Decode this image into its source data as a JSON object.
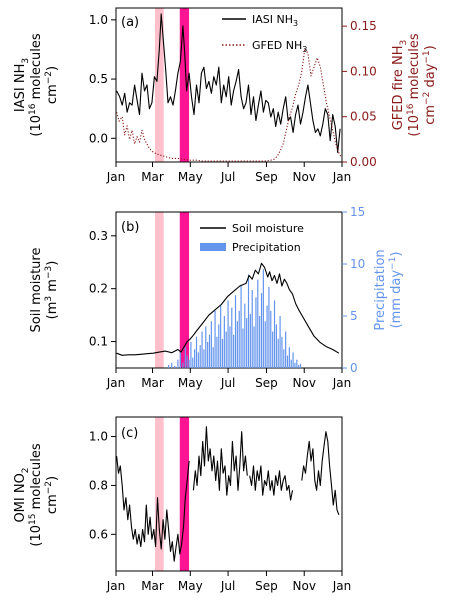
{
  "colors": {
    "iasi": "#000000",
    "gfed": "#8b1a1a",
    "soil": "#000000",
    "precip": "#6495ed",
    "omi": "#000000",
    "band_light": "#ffc0cb",
    "band_dark": "#ff1493"
  },
  "months": [
    "Jan",
    "Mar",
    "May",
    "Jul",
    "Sep",
    "Nov",
    "Jan"
  ],
  "chart_data": [
    {
      "type": "line",
      "panel_label": "(a)",
      "left_axis": {
        "label_lines": [
          "IASI NH",
          "(10",
          " molecules",
          "cm"
        ],
        "ylim": [
          -0.2,
          1.1
        ],
        "ticks": [
          "0.0",
          "0.5",
          "1.0"
        ],
        "tick_values": [
          0.0,
          0.5,
          1.0
        ]
      },
      "right_axis": {
        "label_lines": [
          "GFED fire NH",
          "(10",
          " molecules",
          "cm",
          " day"
        ],
        "ylim": [
          0.0,
          0.17
        ],
        "ticks": [
          "0.00",
          "0.05",
          "0.10",
          "0.15"
        ],
        "tick_values": [
          0.0,
          0.05,
          0.1,
          0.15
        ]
      },
      "shaded_bands": [
        {
          "start": 63,
          "end": 77,
          "shade": "light"
        },
        {
          "start": 103,
          "end": 118,
          "shade": "dark"
        }
      ],
      "series": [
        {
          "name": "IASI NH3",
          "axis": "left",
          "style": "solid",
          "x": [
            1,
            6,
            10,
            14,
            18,
            22,
            26,
            30,
            34,
            38,
            42,
            46,
            50,
            54,
            58,
            62,
            66,
            70,
            73,
            76,
            80,
            84,
            88,
            92,
            96,
            100,
            104,
            108,
            111,
            114,
            118,
            122,
            126,
            130,
            134,
            138,
            142,
            146,
            150,
            154,
            158,
            162,
            166,
            170,
            174,
            178,
            182,
            186,
            190,
            194,
            198,
            202,
            206,
            210,
            214,
            218,
            222,
            226,
            230,
            234,
            238,
            242,
            246,
            250,
            254,
            258,
            262,
            266,
            270,
            274,
            278,
            282,
            286,
            290,
            294,
            298,
            302,
            306,
            310,
            314,
            318,
            322,
            326,
            330,
            334,
            338,
            342,
            346,
            350,
            354,
            358,
            362
          ],
          "y": [
            0.4,
            0.35,
            0.28,
            0.38,
            0.22,
            0.3,
            0.28,
            0.45,
            0.32,
            0.2,
            0.55,
            0.4,
            0.45,
            0.25,
            0.3,
            0.52,
            0.48,
            0.75,
            1.05,
            0.85,
            0.6,
            0.3,
            0.35,
            0.28,
            0.4,
            0.55,
            0.65,
            0.95,
            0.72,
            0.4,
            0.55,
            0.35,
            0.2,
            0.45,
            0.3,
            0.55,
            0.6,
            0.42,
            0.48,
            0.38,
            0.52,
            0.45,
            0.6,
            0.3,
            0.45,
            0.35,
            0.52,
            0.28,
            0.4,
            0.48,
            0.58,
            0.35,
            0.25,
            0.3,
            0.45,
            0.2,
            0.35,
            0.15,
            0.28,
            0.4,
            0.22,
            0.32,
            0.3,
            0.18,
            0.25,
            0.1,
            0.22,
            0.12,
            0.25,
            0.35,
            0.15,
            0.18,
            0.05,
            0.2,
            0.28,
            0.12,
            0.22,
            0.35,
            0.45,
            0.3,
            0.15,
            0.05,
            0.08,
            0.02,
            0.12,
            0.25,
            0.2,
            -0.02,
            0.2,
            0.1,
            -0.12,
            0.08
          ]
        },
        {
          "name": "GFED NH3",
          "axis": "right",
          "style": "dotted",
          "x": [
            1,
            5,
            10,
            14,
            18,
            22,
            26,
            30,
            34,
            38,
            42,
            46,
            50,
            54,
            58,
            62,
            70,
            80,
            90,
            100,
            110,
            120,
            130,
            140,
            150,
            160,
            170,
            180,
            190,
            200,
            210,
            220,
            230,
            240,
            250,
            255,
            260,
            265,
            270,
            275,
            280,
            285,
            290,
            295,
            300,
            305,
            310,
            315,
            320,
            325,
            330,
            335,
            340,
            345,
            350,
            355,
            360,
            364
          ],
          "y": [
            0.055,
            0.045,
            0.05,
            0.03,
            0.04,
            0.025,
            0.035,
            0.02,
            0.028,
            0.022,
            0.035,
            0.025,
            0.02,
            0.015,
            0.012,
            0.01,
            0.008,
            0.006,
            0.004,
            0.004,
            0.003,
            0.002,
            0.002,
            0.001,
            0.001,
            0.001,
            0.001,
            0.001,
            0.001,
            0.001,
            0.001,
            0.001,
            0.001,
            0.001,
            0.002,
            0.003,
            0.006,
            0.012,
            0.02,
            0.035,
            0.05,
            0.06,
            0.075,
            0.085,
            0.1,
            0.125,
            0.12,
            0.095,
            0.105,
            0.115,
            0.105,
            0.085,
            0.065,
            0.05,
            0.035,
            0.02,
            0.01,
            0.005
          ]
        }
      ],
      "legend": {
        "placement": "top-right",
        "entries": [
          "IASI NH",
          "GFED NH"
        ]
      }
    },
    {
      "type": "line",
      "panel_label": "(b)",
      "left_axis": {
        "label_lines": [
          "Soil moisture",
          "(m",
          " m"
        ],
        "ylim": [
          0.05,
          0.345
        ],
        "ticks": [
          "0.1",
          "0.2",
          "0.3"
        ],
        "tick_values": [
          0.1,
          0.2,
          0.3
        ]
      },
      "right_axis": {
        "label_lines": [
          "Precipitation",
          "(mm day"
        ],
        "ylim": [
          0,
          15
        ],
        "ticks": [
          "0",
          "5",
          "10",
          "15"
        ],
        "tick_values": [
          0,
          5,
          10,
          15
        ]
      },
      "shaded_bands": [
        {
          "start": 63,
          "end": 77,
          "shade": "light"
        },
        {
          "start": 103,
          "end": 118,
          "shade": "dark"
        }
      ],
      "series": [
        {
          "name": "Soil moisture",
          "axis": "left",
          "style": "solid",
          "x": [
            1,
            10,
            20,
            30,
            40,
            50,
            60,
            70,
            80,
            90,
            100,
            105,
            110,
            115,
            120,
            125,
            130,
            140,
            150,
            160,
            170,
            180,
            190,
            200,
            210,
            215,
            220,
            225,
            230,
            235,
            240,
            245,
            248,
            252,
            256,
            260,
            264,
            268,
            272,
            276,
            280,
            285,
            290,
            295,
            300,
            310,
            320,
            330,
            340,
            350,
            360
          ],
          "y": [
            0.078,
            0.074,
            0.075,
            0.075,
            0.076,
            0.077,
            0.078,
            0.08,
            0.082,
            0.079,
            0.085,
            0.08,
            0.09,
            0.1,
            0.105,
            0.112,
            0.12,
            0.135,
            0.15,
            0.16,
            0.17,
            0.185,
            0.195,
            0.205,
            0.21,
            0.225,
            0.218,
            0.235,
            0.228,
            0.248,
            0.24,
            0.222,
            0.232,
            0.215,
            0.225,
            0.21,
            0.228,
            0.205,
            0.218,
            0.21,
            0.198,
            0.19,
            0.172,
            0.16,
            0.15,
            0.13,
            0.11,
            0.098,
            0.09,
            0.085,
            0.078
          ]
        },
        {
          "name": "Precipitation",
          "axis": "right",
          "style": "bars",
          "x": [
            85,
            90,
            95,
            100,
            104,
            108,
            112,
            115,
            118,
            121,
            124,
            127,
            130,
            133,
            136,
            139,
            142,
            145,
            148,
            151,
            154,
            157,
            160,
            163,
            166,
            169,
            172,
            175,
            178,
            181,
            184,
            187,
            190,
            193,
            196,
            199,
            202,
            205,
            208,
            211,
            214,
            217,
            220,
            223,
            226,
            229,
            232,
            235,
            238,
            241,
            244,
            247,
            250,
            253,
            256,
            259,
            262,
            265,
            268,
            271,
            274,
            277,
            280,
            283,
            286,
            289,
            292,
            295,
            298
          ],
          "y": [
            0.3,
            0.5,
            0.2,
            0.8,
            1.5,
            0.5,
            2.0,
            1.2,
            0.8,
            2.5,
            1.0,
            1.8,
            3.0,
            1.5,
            2.2,
            3.5,
            1.8,
            4.0,
            2.5,
            3.2,
            4.5,
            2.0,
            5.5,
            3.0,
            4.2,
            6.0,
            2.8,
            5.0,
            3.5,
            6.5,
            4.0,
            5.8,
            3.2,
            7.0,
            4.5,
            5.5,
            8.0,
            3.8,
            6.2,
            4.8,
            9.0,
            5.2,
            7.5,
            4.0,
            6.8,
            8.5,
            5.0,
            7.2,
            9.5,
            4.5,
            6.0,
            7.8,
            5.5,
            3.5,
            6.5,
            4.2,
            2.8,
            5.0,
            3.0,
            1.8,
            3.5,
            1.2,
            2.0,
            0.8,
            1.5,
            0.5,
            0.8,
            0.3,
            0.4
          ]
        }
      ],
      "legend": {
        "placement": "top-right",
        "entries": [
          "Soil moisture",
          "Precipitation"
        ]
      }
    },
    {
      "type": "line",
      "panel_label": "(c)",
      "left_axis": {
        "label_lines": [
          "OMI NO",
          "(10",
          " molecules",
          "cm"
        ],
        "ylim": [
          0.45,
          1.08
        ],
        "ticks": [
          "0.6",
          "0.8",
          "1.0"
        ],
        "tick_values": [
          0.6,
          0.8,
          1.0
        ]
      },
      "shaded_bands": [
        {
          "start": 63,
          "end": 77,
          "shade": "light"
        },
        {
          "start": 103,
          "end": 118,
          "shade": "dark"
        }
      ],
      "series": [
        {
          "name": "OMI NO2",
          "axis": "left",
          "style": "solid",
          "segments": [
            {
              "x": [
                1,
                4,
                7,
                10,
                13,
                16,
                19,
                22,
                25,
                28,
                31,
                34,
                37,
                40,
                43,
                46,
                49,
                52,
                55,
                58,
                61,
                64,
                67,
                70,
                73,
                76,
                79,
                82,
                85,
                88,
                91,
                94,
                97,
                100,
                103,
                106,
                109,
                112,
                115,
                118
              ],
              "y": [
                0.92,
                0.85,
                0.88,
                0.8,
                0.7,
                0.75,
                0.66,
                0.72,
                0.63,
                0.58,
                0.62,
                0.56,
                0.6,
                0.55,
                0.62,
                0.57,
                0.72,
                0.6,
                0.67,
                0.58,
                0.62,
                0.55,
                0.75,
                0.62,
                0.54,
                0.66,
                0.58,
                0.7,
                0.62,
                0.53,
                0.57,
                0.49,
                0.55,
                0.6,
                0.52,
                0.56,
                0.63,
                0.75,
                0.82,
                0.9
              ]
            },
            {
              "x": [
                125,
                128,
                131,
                134,
                137,
                140,
                143,
                146,
                149,
                152,
                155,
                158,
                161,
                164,
                167,
                170,
                173,
                176,
                179,
                182,
                185,
                188,
                191,
                194,
                197,
                200,
                203,
                206,
                209,
                212
              ],
              "y": [
                0.78,
                0.86,
                0.8,
                0.92,
                0.84,
                0.98,
                0.88,
                1.04,
                0.9,
                0.95,
                0.86,
                0.92,
                0.82,
                0.9,
                0.78,
                0.95,
                0.85,
                0.88,
                0.76,
                0.84,
                0.8,
                0.98,
                0.86,
                0.92,
                0.78,
                0.88,
                1.02,
                0.86,
                0.92,
                0.84
              ]
            },
            {
              "x": [
                216,
                219,
                222,
                225,
                228,
                231,
                234,
                237,
                240,
                243,
                246,
                249,
                252,
                255,
                258,
                261,
                264,
                267,
                270,
                273,
                276,
                279,
                282,
                285
              ],
              "y": [
                0.84,
                0.8,
                0.88,
                0.78,
                0.86,
                0.82,
                0.88,
                0.76,
                0.82,
                0.8,
                0.86,
                0.78,
                0.82,
                0.76,
                0.84,
                0.8,
                0.86,
                0.78,
                0.82,
                0.84,
                0.78,
                0.8,
                0.74,
                0.78
              ]
            },
            {
              "x": [
                300,
                303,
                306,
                309,
                312,
                315,
                318,
                321,
                324,
                327,
                330,
                333,
                336,
                339,
                342,
                345,
                348,
                351,
                354,
                357,
                360
              ],
              "y": [
                0.82,
                0.88,
                0.85,
                0.92,
                0.98,
                0.9,
                0.95,
                0.82,
                0.78,
                0.86,
                0.8,
                0.9,
                0.96,
                1.02,
                0.98,
                0.88,
                0.8,
                0.72,
                0.78,
                0.7,
                0.68
              ]
            }
          ]
        }
      ]
    }
  ]
}
